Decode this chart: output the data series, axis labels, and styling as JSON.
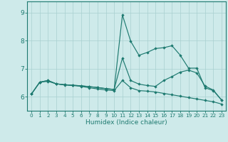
{
  "xlabel": "Humidex (Indice chaleur)",
  "bg_color": "#ceeaea",
  "grid_color": "#a8d0d0",
  "line_color": "#1e7a70",
  "xlim": [
    -0.5,
    23.5
  ],
  "ylim": [
    5.5,
    9.4
  ],
  "yticks": [
    6,
    7,
    8,
    9
  ],
  "xticks": [
    0,
    1,
    2,
    3,
    4,
    5,
    6,
    7,
    8,
    9,
    10,
    11,
    12,
    13,
    14,
    15,
    16,
    17,
    18,
    19,
    20,
    21,
    22,
    23
  ],
  "line1_x": [
    0,
    1,
    2,
    3,
    4,
    5,
    6,
    7,
    8,
    9,
    10,
    11,
    12,
    13,
    14,
    15,
    16,
    17,
    18,
    19,
    20,
    21,
    22,
    23
  ],
  "line1_y": [
    6.1,
    6.52,
    6.58,
    6.46,
    6.43,
    6.41,
    6.39,
    6.36,
    6.33,
    6.29,
    6.26,
    8.92,
    7.98,
    7.48,
    7.58,
    7.72,
    7.75,
    7.82,
    7.48,
    7.02,
    7.02,
    6.32,
    6.22,
    5.88
  ],
  "line2_x": [
    0,
    1,
    2,
    3,
    4,
    5,
    6,
    7,
    8,
    9,
    10,
    11,
    12,
    13,
    14,
    15,
    16,
    17,
    18,
    19,
    20,
    21,
    22,
    23
  ],
  "line2_y": [
    6.1,
    6.52,
    6.58,
    6.46,
    6.43,
    6.41,
    6.39,
    6.36,
    6.33,
    6.29,
    6.26,
    7.38,
    6.58,
    6.45,
    6.4,
    6.37,
    6.58,
    6.72,
    6.88,
    6.95,
    6.85,
    6.38,
    6.24,
    5.88
  ],
  "line3_x": [
    0,
    1,
    2,
    3,
    4,
    5,
    6,
    7,
    8,
    9,
    10,
    11,
    12,
    13,
    14,
    15,
    16,
    17,
    18,
    19,
    20,
    21,
    22,
    23
  ],
  "line3_y": [
    6.1,
    6.52,
    6.55,
    6.46,
    6.42,
    6.4,
    6.37,
    6.32,
    6.28,
    6.24,
    6.22,
    6.58,
    6.32,
    6.22,
    6.2,
    6.17,
    6.12,
    6.07,
    6.02,
    5.97,
    5.92,
    5.87,
    5.82,
    5.74
  ]
}
